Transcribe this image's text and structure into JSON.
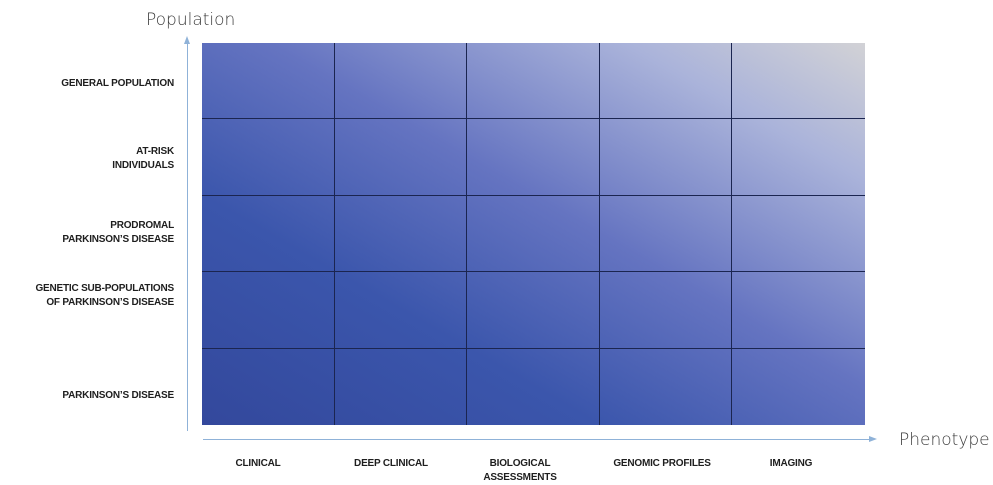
{
  "y_axis": {
    "title": "Population"
  },
  "x_axis": {
    "title": "Phenotype"
  },
  "rows": [
    {
      "line1": "GENERAL POPULATION",
      "line2": ""
    },
    {
      "line1": "AT-RISK",
      "line2": "INDIVIDUALS"
    },
    {
      "line1": "PRODROMAL",
      "line2": "PARKINSON’S DISEASE"
    },
    {
      "line1": "GENETIC SUB-POPULATIONS",
      "line2": "OF PARKINSON’S DISEASE"
    },
    {
      "line1": "PARKINSON’S DISEASE",
      "line2": ""
    }
  ],
  "columns": [
    {
      "line1": "CLINICAL",
      "line2": ""
    },
    {
      "line1": "DEEP CLINICAL",
      "line2": ""
    },
    {
      "line1": "BIOLOGICAL",
      "line2": "ASSESSMENTS"
    },
    {
      "line1": "GENOMIC PROFILES",
      "line2": ""
    },
    {
      "line1": "IMAGING",
      "line2": ""
    }
  ],
  "colors": {
    "axis": "#8fb2d8",
    "grid_lines": "#1b2550",
    "gradient_dark": "#33489c",
    "gradient_light": "#d2d2d6"
  }
}
